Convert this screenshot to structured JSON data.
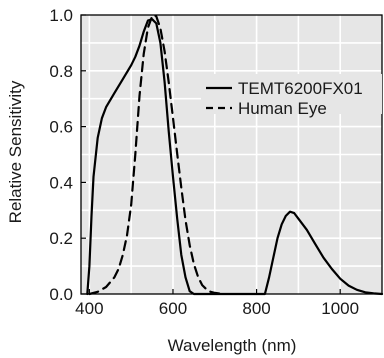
{
  "chart_data": {
    "type": "line",
    "xlabel": "Wavelength (nm)",
    "ylabel": "Relative Sensitivity",
    "xlim": [
      380,
      1100
    ],
    "ylim": [
      0,
      1.0
    ],
    "x_ticks": [
      400,
      600,
      800,
      1000
    ],
    "y_ticks": [
      0.0,
      0.2,
      0.4,
      0.6,
      0.8,
      1.0
    ],
    "x_tick_labels": [
      "400",
      "600",
      "800",
      "1000"
    ],
    "y_tick_labels": [
      "0.0",
      "0.2",
      "0.4",
      "0.6",
      "0.8",
      "1.0"
    ],
    "grid": true,
    "legend_position": "right",
    "plot_background": "#e6e6e6",
    "grid_color": "#ffffff",
    "line_color": "#000000",
    "series": [
      {
        "name": "TEMT6200FX01",
        "style": "solid",
        "points": [
          [
            395,
            0.0
          ],
          [
            400,
            0.1
          ],
          [
            405,
            0.28
          ],
          [
            410,
            0.42
          ],
          [
            420,
            0.56
          ],
          [
            430,
            0.63
          ],
          [
            440,
            0.67
          ],
          [
            460,
            0.72
          ],
          [
            480,
            0.77
          ],
          [
            500,
            0.82
          ],
          [
            510,
            0.85
          ],
          [
            520,
            0.89
          ],
          [
            530,
            0.94
          ],
          [
            540,
            0.98
          ],
          [
            550,
            0.985
          ],
          [
            560,
            0.97
          ],
          [
            570,
            0.9
          ],
          [
            580,
            0.76
          ],
          [
            590,
            0.58
          ],
          [
            600,
            0.42
          ],
          [
            610,
            0.27
          ],
          [
            620,
            0.14
          ],
          [
            630,
            0.06
          ],
          [
            640,
            0.01
          ],
          [
            650,
            0.0
          ],
          [
            700,
            0.0
          ],
          [
            750,
            0.0
          ],
          [
            800,
            0.0
          ],
          [
            820,
            0.0
          ],
          [
            830,
            0.06
          ],
          [
            840,
            0.13
          ],
          [
            850,
            0.2
          ],
          [
            860,
            0.25
          ],
          [
            870,
            0.28
          ],
          [
            880,
            0.295
          ],
          [
            890,
            0.29
          ],
          [
            900,
            0.27
          ],
          [
            920,
            0.23
          ],
          [
            940,
            0.18
          ],
          [
            960,
            0.13
          ],
          [
            980,
            0.09
          ],
          [
            1000,
            0.055
          ],
          [
            1020,
            0.03
          ],
          [
            1040,
            0.015
          ],
          [
            1060,
            0.006
          ],
          [
            1080,
            0.002
          ],
          [
            1100,
            0.0
          ]
        ]
      },
      {
        "name": "Human Eye",
        "style": "dashed",
        "points": [
          [
            400,
            0.0
          ],
          [
            420,
            0.008
          ],
          [
            440,
            0.025
          ],
          [
            460,
            0.06
          ],
          [
            470,
            0.09
          ],
          [
            480,
            0.14
          ],
          [
            490,
            0.21
          ],
          [
            500,
            0.32
          ],
          [
            510,
            0.5
          ],
          [
            520,
            0.71
          ],
          [
            530,
            0.86
          ],
          [
            540,
            0.954
          ],
          [
            550,
            0.995
          ],
          [
            555,
            1.0
          ],
          [
            560,
            0.995
          ],
          [
            570,
            0.952
          ],
          [
            580,
            0.87
          ],
          [
            590,
            0.757
          ],
          [
            600,
            0.631
          ],
          [
            610,
            0.503
          ],
          [
            620,
            0.381
          ],
          [
            630,
            0.265
          ],
          [
            640,
            0.175
          ],
          [
            650,
            0.107
          ],
          [
            660,
            0.061
          ],
          [
            670,
            0.032
          ],
          [
            680,
            0.017
          ],
          [
            690,
            0.008
          ],
          [
            700,
            0.004
          ],
          [
            720,
            0.0
          ]
        ]
      }
    ]
  }
}
